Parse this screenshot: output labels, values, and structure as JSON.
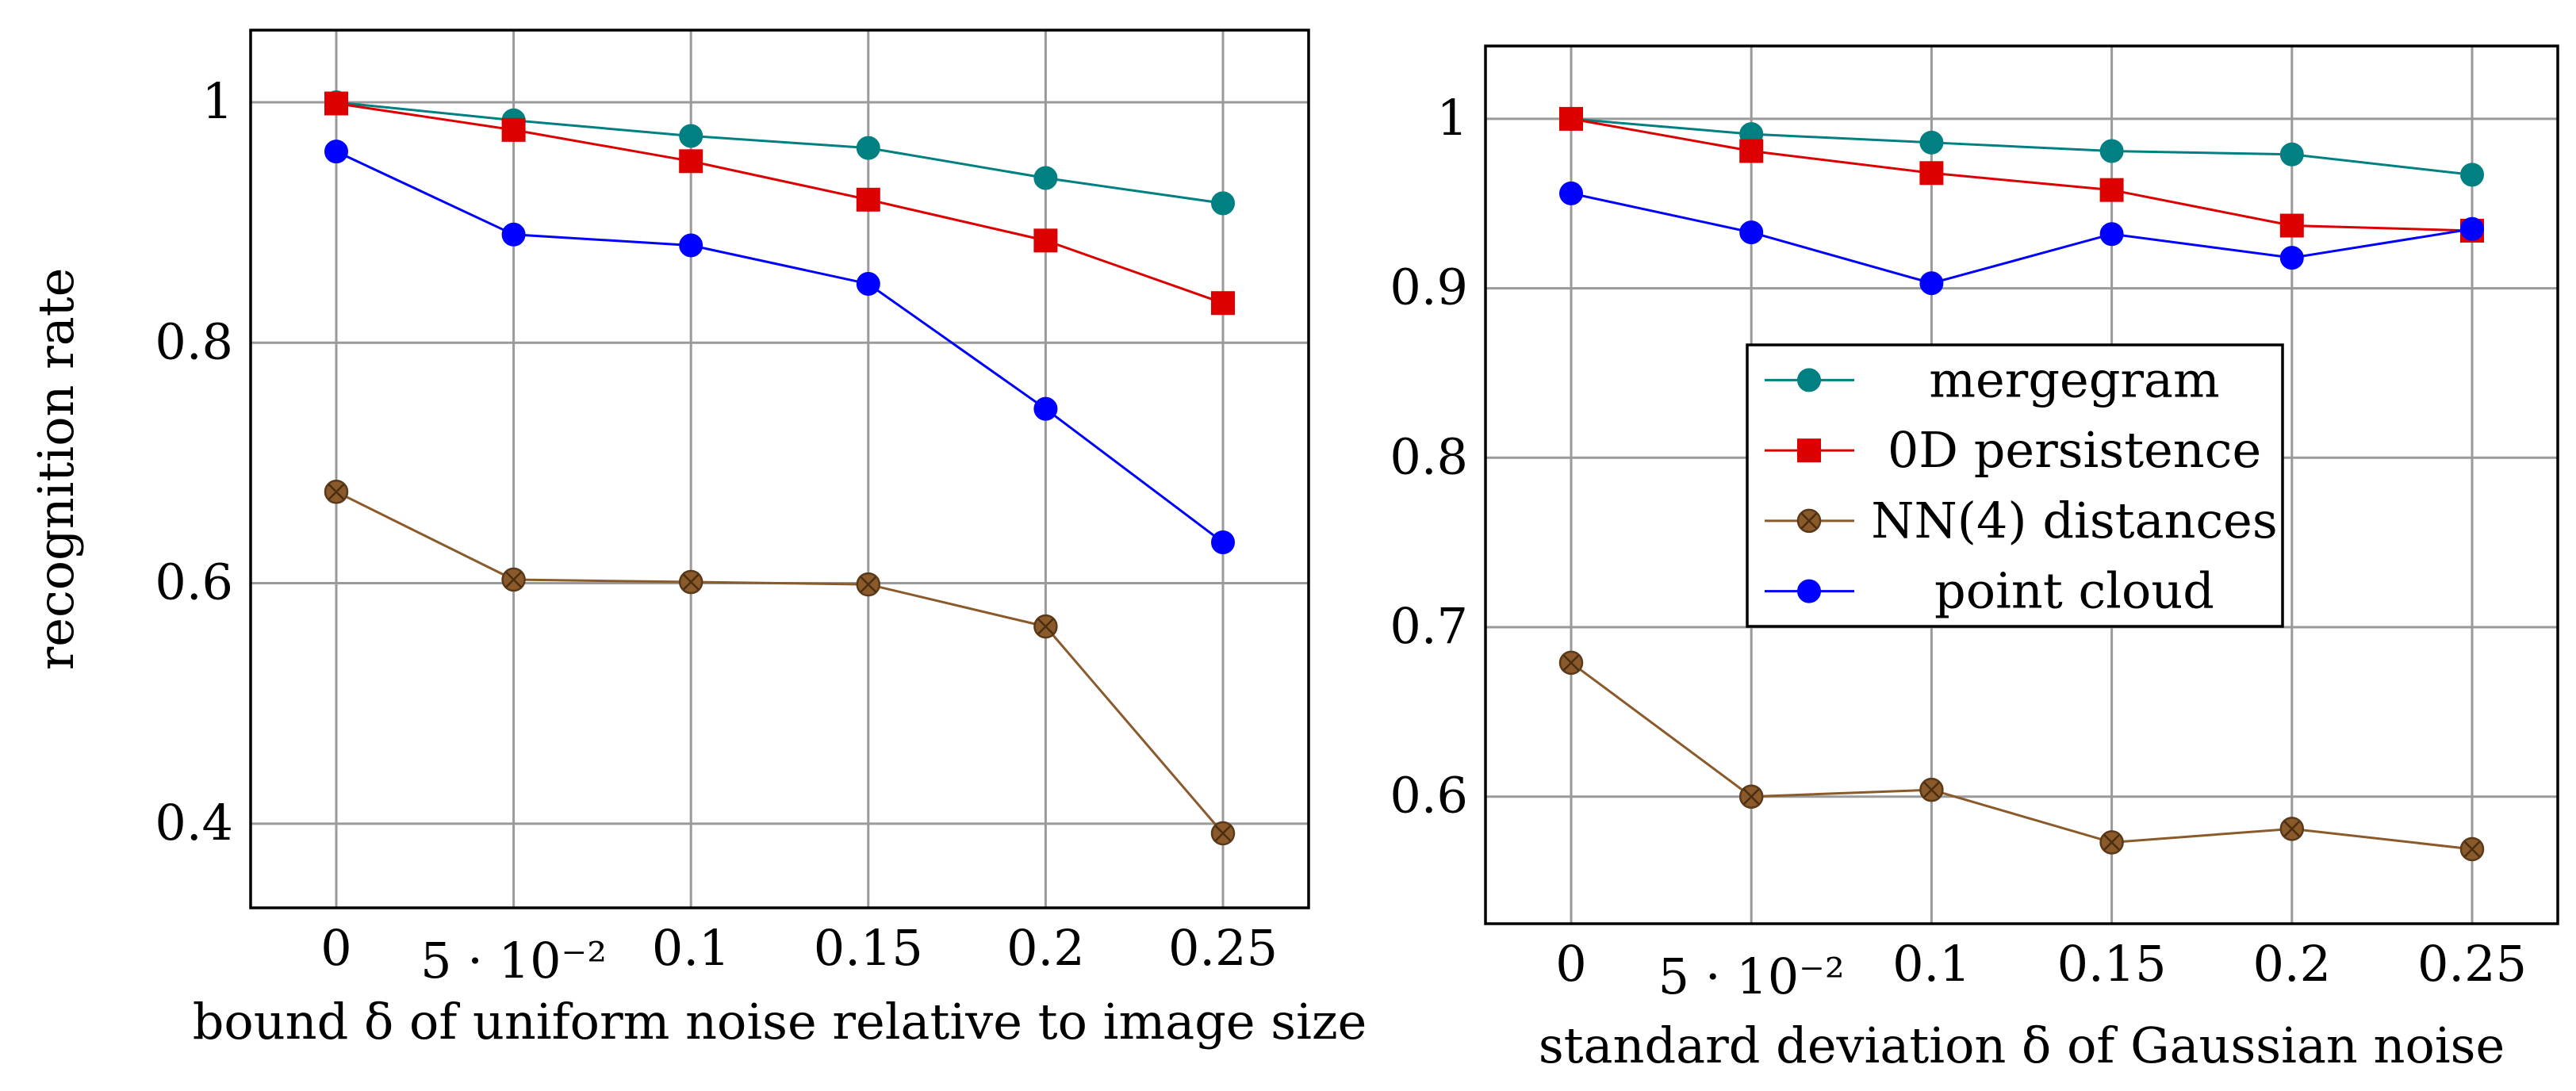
{
  "chart_data": [
    {
      "type": "line",
      "title": "",
      "xlabel": "bound δ of uniform noise relative to image size",
      "ylabel": "recognition rate",
      "categories": [
        "0",
        "5 · 10⁻²",
        "0.1",
        "0.15",
        "0.2",
        "0.25"
      ],
      "x": [
        0,
        0.05,
        0.1,
        0.15,
        0.2,
        0.25
      ],
      "ylim": [
        0.33,
        1.06
      ],
      "yticks": [
        0.4,
        0.6,
        0.8,
        1
      ],
      "ytick_labels": [
        "0.4",
        "0.6",
        "0.8",
        "1"
      ],
      "grid": true,
      "legend": "none",
      "series": [
        {
          "name": "mergegram",
          "color": "#008080",
          "marker": "circle",
          "values": [
            1.0,
            0.985,
            0.972,
            0.962,
            0.937,
            0.916
          ]
        },
        {
          "name": "0D persistence",
          "color": "#dd0000",
          "marker": "square",
          "values": [
            0.999,
            0.977,
            0.951,
            0.919,
            0.885,
            0.833
          ]
        },
        {
          "name": "NN(4) distances",
          "color": "#8b5a2b",
          "marker": "otimes",
          "values": [
            0.676,
            0.603,
            0.601,
            0.599,
            0.564,
            0.392
          ]
        },
        {
          "name": "point cloud",
          "color": "#0000ff",
          "marker": "circle",
          "values": [
            0.959,
            0.89,
            0.881,
            0.849,
            0.745,
            0.634
          ]
        }
      ]
    },
    {
      "type": "line",
      "title": "",
      "xlabel": "standard deviation δ of Gaussian noise",
      "ylabel": "",
      "categories": [
        "0",
        "5 · 10⁻²",
        "0.1",
        "0.15",
        "0.2",
        "0.25"
      ],
      "x": [
        0,
        0.05,
        0.1,
        0.15,
        0.2,
        0.25
      ],
      "ylim": [
        0.525,
        1.043
      ],
      "yticks": [
        0.6,
        0.7,
        0.8,
        0.9,
        1
      ],
      "ytick_labels": [
        "0.6",
        "0.7",
        "0.8",
        "0.9",
        "1"
      ],
      "grid": true,
      "legend": "center-right",
      "series": [
        {
          "name": "mergegram",
          "color": "#008080",
          "marker": "circle",
          "values": [
            1.0,
            0.991,
            0.986,
            0.981,
            0.979,
            0.967
          ]
        },
        {
          "name": "0D persistence",
          "color": "#dd0000",
          "marker": "square",
          "values": [
            1.0,
            0.981,
            0.968,
            0.958,
            0.937,
            0.934
          ]
        },
        {
          "name": "NN(4) distances",
          "color": "#8b5a2b",
          "marker": "otimes",
          "values": [
            0.679,
            0.6,
            0.604,
            0.573,
            0.581,
            0.569
          ]
        },
        {
          "name": "point cloud",
          "color": "#0000ff",
          "marker": "circle",
          "values": [
            0.956,
            0.933,
            0.903,
            0.932,
            0.918,
            0.935
          ]
        }
      ]
    }
  ]
}
